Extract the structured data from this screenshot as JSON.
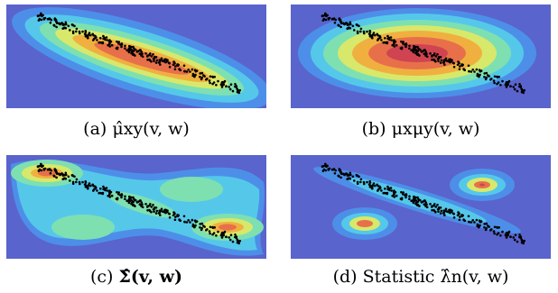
{
  "figure": {
    "panels": [
      {
        "id": "a",
        "label": "(a)",
        "caption_math": "μ̂xy(v, w)"
      },
      {
        "id": "b",
        "label": "(b)",
        "caption_math": "μxμy(v, w)"
      },
      {
        "id": "c",
        "label": "(c)",
        "caption_math": "Σ̂(v, w)"
      },
      {
        "id": "d",
        "label": "(d)",
        "caption_word": "Statistic",
        "caption_math": "λ̂n(v, w)"
      }
    ],
    "colors": {
      "background": "#5a64cd",
      "levels": [
        "#5a64cd",
        "#4d8fe8",
        "#55c8ea",
        "#7ee0b0",
        "#d8e86a",
        "#f0b040",
        "#e7704a",
        "#cf4450"
      ],
      "points": "#000000"
    }
  }
}
